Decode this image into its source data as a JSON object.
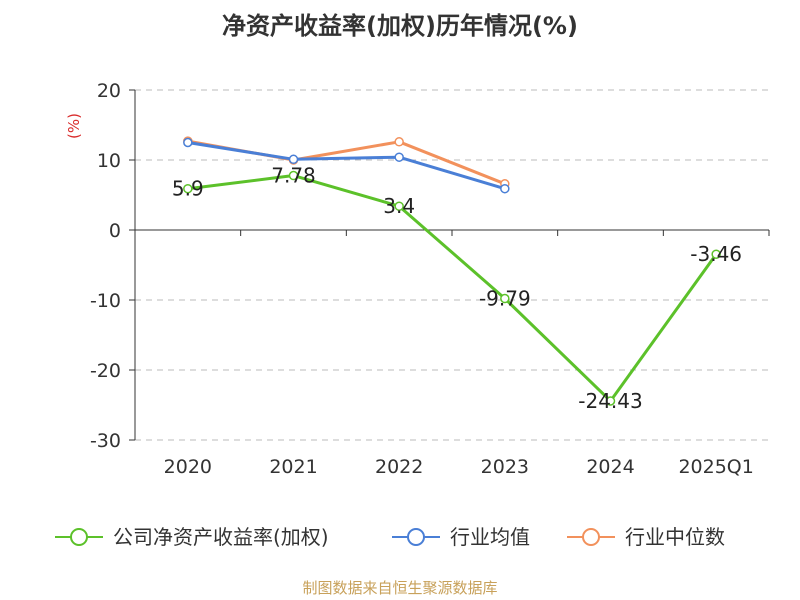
{
  "title": "净资产收益率(加权)历年情况(%)",
  "source": "制图数据来自恒生聚源数据库",
  "chart_data": {
    "type": "line",
    "title": "净资产收益率(加权)历年情况(%)",
    "ylabel": "(%)",
    "categories": [
      "2020",
      "2021",
      "2022",
      "2023",
      "2024",
      "2025Q1"
    ],
    "y_ticks": [
      "20",
      "10",
      "0",
      "-10",
      "-20",
      "-30"
    ],
    "ylim": [
      -30,
      20
    ],
    "grid": true,
    "legend_position": "bottom",
    "series": [
      {
        "name": "公司净资产收益率(加权)",
        "color": "#5cc12a",
        "values": [
          5.9,
          7.78,
          3.4,
          -9.79,
          -24.43,
          -3.46
        ],
        "data_labels": [
          "5.9",
          "7.78",
          "3.4",
          "-9.79",
          "-24.43",
          "-3.46"
        ]
      },
      {
        "name": "行业均值",
        "color": "#4a7fd6",
        "values": [
          12.5,
          10.1,
          10.4,
          5.9,
          null,
          null
        ]
      },
      {
        "name": "行业中位数",
        "color": "#f2915c",
        "values": [
          12.7,
          10.0,
          12.6,
          6.6,
          null,
          null
        ]
      }
    ]
  }
}
